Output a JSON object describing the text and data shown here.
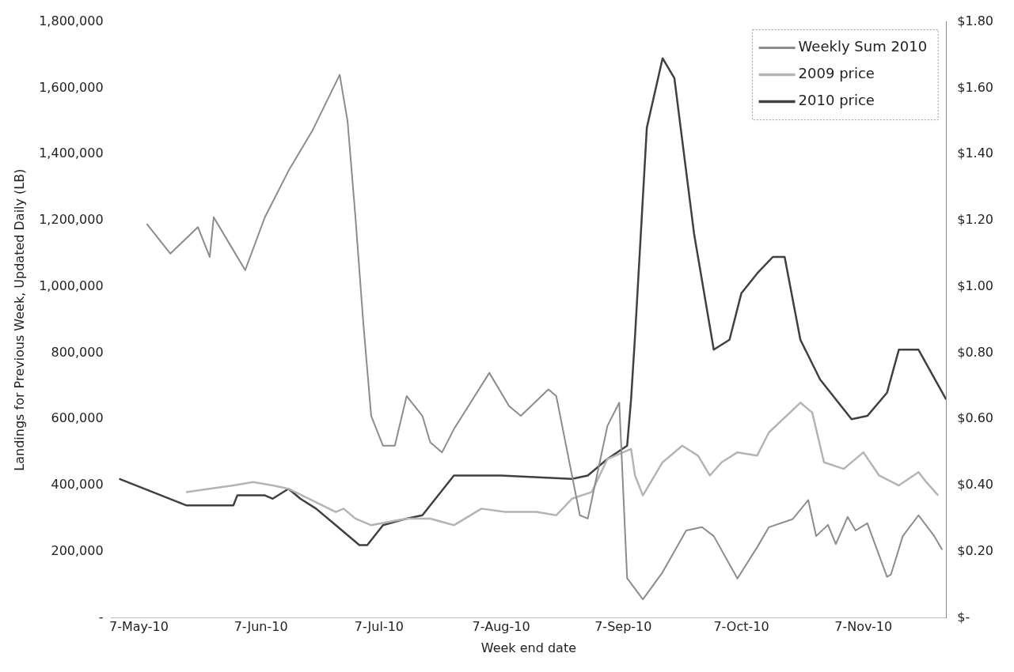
{
  "chart_data": {
    "type": "line",
    "xlabel": "Week end date",
    "ylabel": "Landings for Previous Week, Updated Daily (LB)",
    "xlim": [
      "2010-04-30",
      "2010-11-28"
    ],
    "xticks": [
      {
        "value": "2010-05-07",
        "label": "7-May-10"
      },
      {
        "value": "2010-06-07",
        "label": "7-Jun-10"
      },
      {
        "value": "2010-07-07",
        "label": "7-Jul-10"
      },
      {
        "value": "2010-08-07",
        "label": "7-Aug-10"
      },
      {
        "value": "2010-09-07",
        "label": "7-Sep-10"
      },
      {
        "value": "2010-10-07",
        "label": "7-Oct-10"
      },
      {
        "value": "2010-11-07",
        "label": "7-Nov-10"
      }
    ],
    "ylim": [
      0,
      1800000
    ],
    "yticks": [
      {
        "value": 0,
        "label": "-"
      },
      {
        "value": 200000,
        "label": "200,000"
      },
      {
        "value": 400000,
        "label": "400,000"
      },
      {
        "value": 600000,
        "label": "600,000"
      },
      {
        "value": 800000,
        "label": "800,000"
      },
      {
        "value": 1000000,
        "label": "1,000,000"
      },
      {
        "value": 1200000,
        "label": "1,200,000"
      },
      {
        "value": 1400000,
        "label": "1,400,000"
      },
      {
        "value": 1600000,
        "label": "1,600,000"
      },
      {
        "value": 1800000,
        "label": "1,800,000"
      }
    ],
    "y2lim": [
      0,
      1.8
    ],
    "y2ticks": [
      {
        "value": 0,
        "label": "$-"
      },
      {
        "value": 0.2,
        "label": "$0.20"
      },
      {
        "value": 0.4,
        "label": "$0.40"
      },
      {
        "value": 0.6,
        "label": "$0.60"
      },
      {
        "value": 0.8,
        "label": "$0.80"
      },
      {
        "value": 1.0,
        "label": "$1.00"
      },
      {
        "value": 1.2,
        "label": "$1.20"
      },
      {
        "value": 1.4,
        "label": "$1.40"
      },
      {
        "value": 1.6,
        "label": "$1.60"
      },
      {
        "value": 1.8,
        "label": "$1.80"
      }
    ],
    "grid": false,
    "legend": "top right",
    "marker": "none",
    "line_style": "solid",
    "series": [
      {
        "name": "Weekly Sum 2010",
        "color": "#8c8c8c",
        "x": [
          "2010-05-09",
          "2010-05-15",
          "2010-05-22",
          "2010-05-25",
          "2010-05-26",
          "2010-05-31",
          "2010-06-03",
          "2010-06-08",
          "2010-06-14",
          "2010-06-20",
          "2010-06-27",
          "2010-06-29",
          "2010-07-01",
          "2010-07-03",
          "2010-07-05",
          "2010-07-08",
          "2010-07-11",
          "2010-07-14",
          "2010-07-18",
          "2010-07-20",
          "2010-07-23",
          "2010-07-26",
          "2010-08-04",
          "2010-08-09",
          "2010-08-12",
          "2010-08-19",
          "2010-08-21",
          "2010-08-25",
          "2010-08-27",
          "2010-08-29",
          "2010-09-03",
          "2010-09-06",
          "2010-09-08",
          "2010-09-12",
          "2010-09-17",
          "2010-09-23",
          "2010-09-27",
          "2010-09-30",
          "2010-10-06",
          "2010-10-11",
          "2010-10-14",
          "2010-10-20",
          "2010-10-24",
          "2010-10-26",
          "2010-10-29",
          "2010-10-31",
          "2010-11-03",
          "2010-11-05",
          "2010-11-08",
          "2010-11-13",
          "2010-11-14",
          "2010-11-17",
          "2010-11-21",
          "2010-11-25",
          "2010-11-27"
        ],
        "values": [
          1190000,
          1100000,
          1180000,
          1090000,
          1210000,
          1110000,
          1050000,
          1210000,
          1350000,
          1470000,
          1640000,
          1500000,
          1210000,
          890000,
          610000,
          520000,
          520000,
          670000,
          610000,
          530000,
          500000,
          570000,
          740000,
          640000,
          610000,
          690000,
          670000,
          430000,
          310000,
          300000,
          580000,
          650000,
          120000,
          56000,
          138000,
          264000,
          274000,
          247000,
          119000,
          213000,
          274000,
          298000,
          356000,
          247000,
          281000,
          223000,
          305000,
          264000,
          286000,
          124000,
          131000,
          247000,
          310000,
          247000,
          206000
        ]
      },
      {
        "name": "2009 price",
        "color": "#b4b4b4",
        "axis": "y2",
        "x": [
          "2010-05-19",
          "2010-05-31",
          "2010-06-05",
          "2010-06-10",
          "2010-06-14",
          "2010-06-26",
          "2010-06-28",
          "2010-07-01",
          "2010-07-05",
          "2010-07-14",
          "2010-07-20",
          "2010-07-26",
          "2010-08-02",
          "2010-08-08",
          "2010-08-16",
          "2010-08-21",
          "2010-08-25",
          "2010-08-30",
          "2010-09-03",
          "2010-09-09",
          "2010-09-10",
          "2010-09-12",
          "2010-09-17",
          "2010-09-22",
          "2010-09-26",
          "2010-09-29",
          "2010-10-02",
          "2010-10-06",
          "2010-10-11",
          "2010-10-14",
          "2010-10-22",
          "2010-10-25",
          "2010-10-28",
          "2010-11-02",
          "2010-11-07",
          "2010-11-11",
          "2010-11-16",
          "2010-11-21",
          "2010-11-23",
          "2010-11-26"
        ],
        "values": [
          0.38,
          0.4,
          0.41,
          0.4,
          0.39,
          0.32,
          0.33,
          0.3,
          0.28,
          0.3,
          0.3,
          0.28,
          0.33,
          0.32,
          0.32,
          0.31,
          0.36,
          0.38,
          0.48,
          0.51,
          0.43,
          0.37,
          0.47,
          0.52,
          0.49,
          0.43,
          0.47,
          0.5,
          0.49,
          0.56,
          0.65,
          0.62,
          0.47,
          0.45,
          0.5,
          0.43,
          0.4,
          0.44,
          0.41,
          0.37
        ]
      },
      {
        "name": "2010 price",
        "color": "#404040",
        "axis": "y2",
        "x": [
          "2010-05-02",
          "2010-05-19",
          "2010-05-31",
          "2010-06-01",
          "2010-06-08",
          "2010-06-10",
          "2010-06-14",
          "2010-06-17",
          "2010-06-21",
          "2010-06-26",
          "2010-07-02",
          "2010-07-04",
          "2010-07-08",
          "2010-07-14",
          "2010-07-18",
          "2010-07-26",
          "2010-08-07",
          "2010-08-25",
          "2010-08-29",
          "2010-09-03",
          "2010-09-08",
          "2010-09-09",
          "2010-09-10",
          "2010-09-13",
          "2010-09-17",
          "2010-09-20",
          "2010-09-25",
          "2010-09-30",
          "2010-10-04",
          "2010-10-07",
          "2010-10-11",
          "2010-10-15",
          "2010-10-18",
          "2010-10-22",
          "2010-10-27",
          "2010-11-04",
          "2010-11-08",
          "2010-11-13",
          "2010-11-16",
          "2010-11-21",
          "2010-11-28"
        ],
        "values": [
          0.42,
          0.34,
          0.34,
          0.37,
          0.37,
          0.36,
          0.39,
          0.36,
          0.33,
          0.28,
          0.22,
          0.22,
          0.28,
          0.3,
          0.31,
          0.43,
          0.43,
          0.42,
          0.43,
          0.48,
          0.52,
          0.66,
          0.85,
          1.48,
          1.69,
          1.63,
          1.16,
          0.81,
          0.84,
          0.98,
          1.04,
          1.09,
          1.09,
          0.84,
          0.72,
          0.6,
          0.61,
          0.68,
          0.81,
          0.81,
          0.66
        ]
      }
    ]
  }
}
